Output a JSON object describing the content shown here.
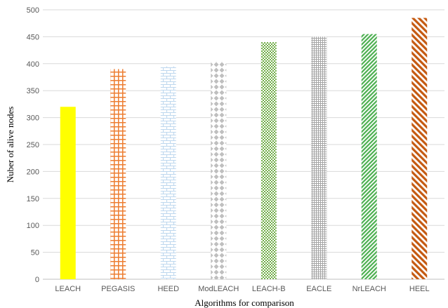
{
  "chart_data": {
    "type": "bar",
    "title": "",
    "xlabel": "Algorithms for comparison",
    "ylabel": "Nuber of alive nodes",
    "categories": [
      "LEACH",
      "PEGASIS",
      "HEED",
      "ModLEACH",
      "LEACH-B",
      "EACLE",
      "NrLEACH",
      "HEEL"
    ],
    "values": [
      320,
      390,
      395,
      405,
      440,
      450,
      455,
      485
    ],
    "ylim": [
      0,
      500
    ],
    "yticks": [
      0,
      50,
      100,
      150,
      200,
      250,
      300,
      350,
      400,
      450,
      500
    ],
    "grid": "horizontal",
    "legend": "none",
    "bar_styles": [
      {
        "pattern": "solid",
        "color": "#ffff00"
      },
      {
        "pattern": "large-grid",
        "color": "#ed7d31"
      },
      {
        "pattern": "brick",
        "color": "#bdd7ee"
      },
      {
        "pattern": "diamond",
        "color": "#bfbfbf"
      },
      {
        "pattern": "small-checker",
        "color": "#70ad47"
      },
      {
        "pattern": "small-grid",
        "color": "#a5a5a5"
      },
      {
        "pattern": "diagonal-stripes",
        "color": "#4caf50"
      },
      {
        "pattern": "wide-diagonal-stripes",
        "color": "#c55a11"
      }
    ]
  }
}
